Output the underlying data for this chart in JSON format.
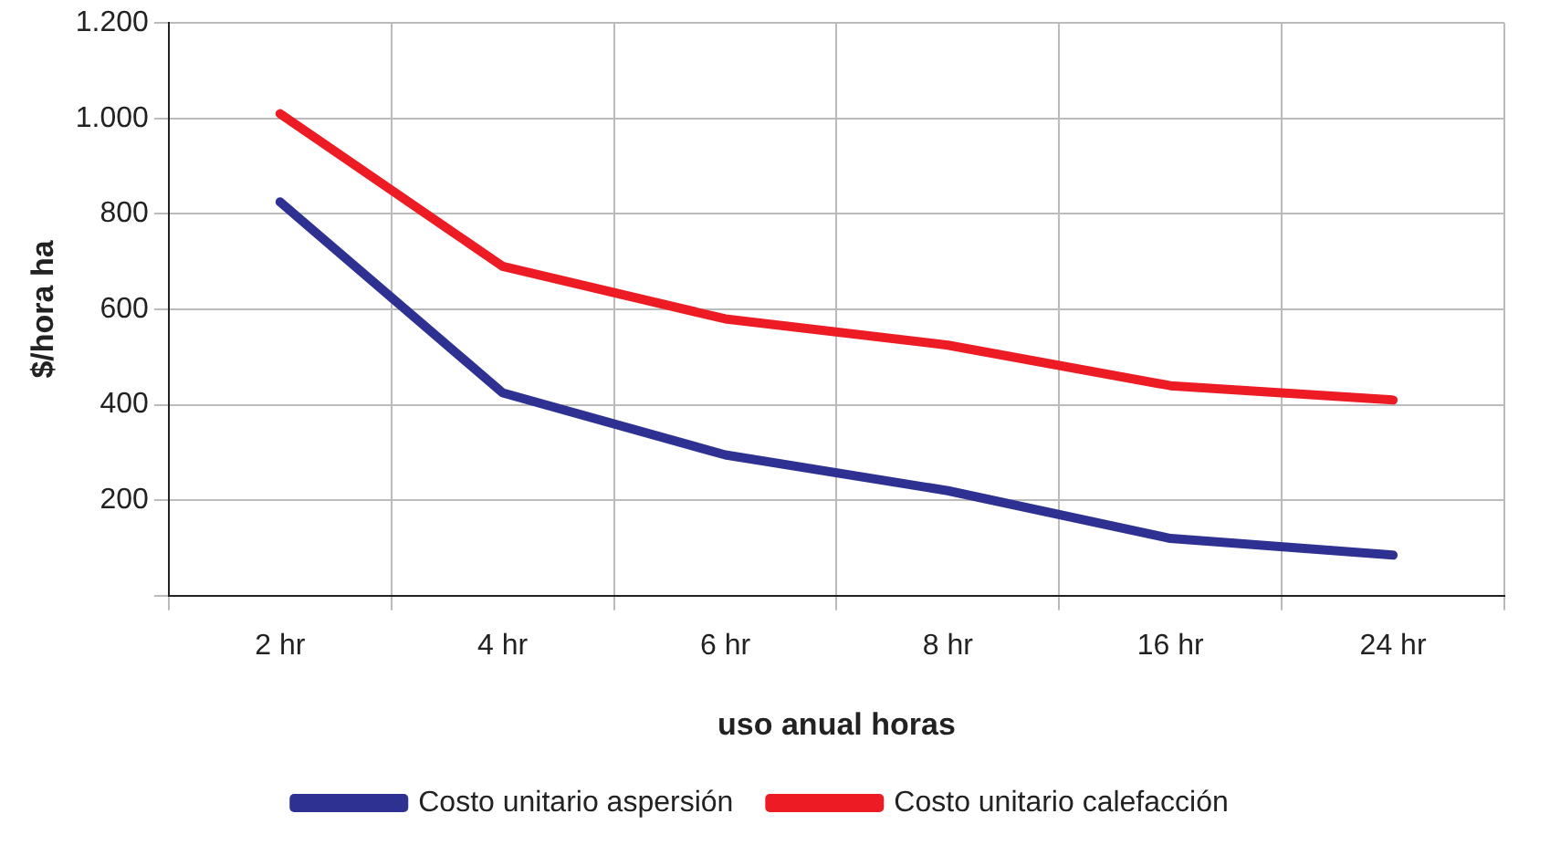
{
  "chart_data": {
    "type": "line",
    "xlabel": "uso anual horas",
    "ylabel": "$/hora ha",
    "categories": [
      "2 hr",
      "4 hr",
      "6 hr",
      "8 hr",
      "16 hr",
      "24 hr"
    ],
    "series": [
      {
        "name": "Costo unitario aspersión",
        "color": "#2e3192",
        "values": [
          825,
          425,
          295,
          220,
          120,
          85
        ]
      },
      {
        "name": "Costo unitario calefacción",
        "color": "#ed1c24",
        "values": [
          1010,
          690,
          580,
          525,
          440,
          410
        ]
      }
    ],
    "ylim": [
      0,
      1200
    ],
    "yticks": [
      {
        "value": 0,
        "label": null
      },
      200,
      400,
      600,
      800,
      {
        "value": 1000,
        "label": "1.000"
      },
      {
        "value": 1200,
        "label": "1.200"
      }
    ],
    "grid": true,
    "legend": "bottom",
    "marker": "none",
    "line_style": "solid"
  }
}
